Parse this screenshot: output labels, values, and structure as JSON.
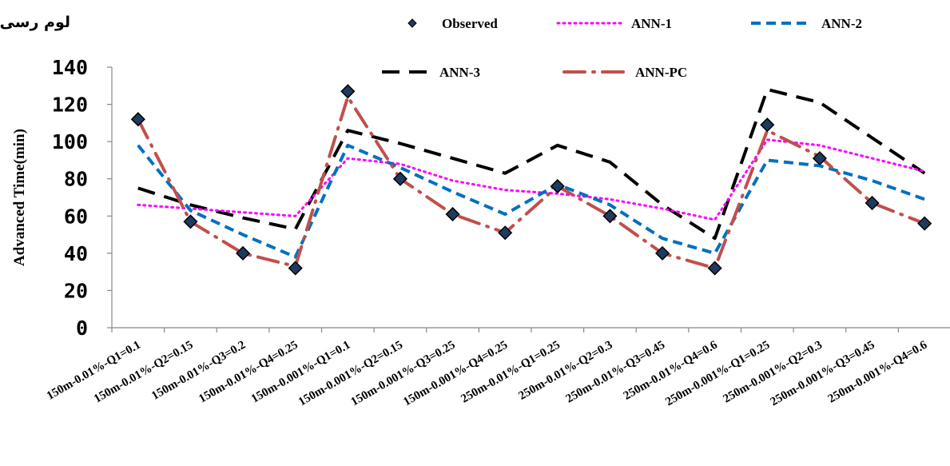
{
  "chart_data": {
    "type": "line",
    "corner_label": "لوم رسی",
    "ylabel": "Advanced Time(min)",
    "ylim": [
      0,
      140
    ],
    "yticks": [
      0,
      20,
      40,
      60,
      80,
      100,
      120,
      140
    ],
    "grid": false,
    "legend_position": "top",
    "categories": [
      "150m-0.01%-Q1=0.1",
      "150m-0.01%-Q2=0.15",
      "150m-0.01%-Q3=0.2",
      "150m-0.01%-Q4=0.25",
      "150m-0.001%-Q1=0.1",
      "150m-0.001%-Q2=0.15",
      "150m-0.001%-Q3=0.25",
      "150m-0.001%-Q4=0.25",
      "250m-0.01%-Q1=0.25",
      "250m-0.01%-Q2=0.3",
      "250m-0.01%-Q3=0.45",
      "250m-0.01%-Q4=0.6",
      "250m-0.001%-Q1=0.25",
      "250m-0.001%-Q2=0.3",
      "250m-0.001%-Q3=0.45",
      "250m-0.001%-Q4=0.6"
    ],
    "series": [
      {
        "name": "Observed",
        "style": "marker",
        "color": "#1f3a5f",
        "values": [
          112,
          57,
          40,
          32,
          127,
          80,
          61,
          51,
          76,
          60,
          40,
          32,
          109,
          91,
          67,
          56
        ]
      },
      {
        "name": "ANN-1",
        "style": "dotted",
        "color": "#ff00ff",
        "values": [
          66,
          64,
          62,
          60,
          91,
          88,
          79,
          74,
          72,
          69,
          64,
          58,
          101,
          98,
          91,
          84
        ]
      },
      {
        "name": "ANN-2",
        "style": "dashed",
        "color": "#0070c0",
        "values": [
          98,
          63,
          50,
          38,
          98,
          86,
          73,
          61,
          77,
          66,
          48,
          40,
          90,
          87,
          79,
          69
        ]
      },
      {
        "name": "ANN-3",
        "style": "longdash",
        "color": "#000000",
        "values": [
          75,
          66,
          59,
          53,
          106,
          99,
          91,
          83,
          98,
          89,
          66,
          48,
          128,
          121,
          102,
          83
        ]
      },
      {
        "name": "ANN-PC",
        "style": "dashdot",
        "color": "#c0504d",
        "values": [
          112,
          57,
          40,
          33,
          124,
          80,
          61,
          51,
          76,
          60,
          40,
          32,
          106,
          92,
          67,
          56
        ]
      }
    ]
  }
}
